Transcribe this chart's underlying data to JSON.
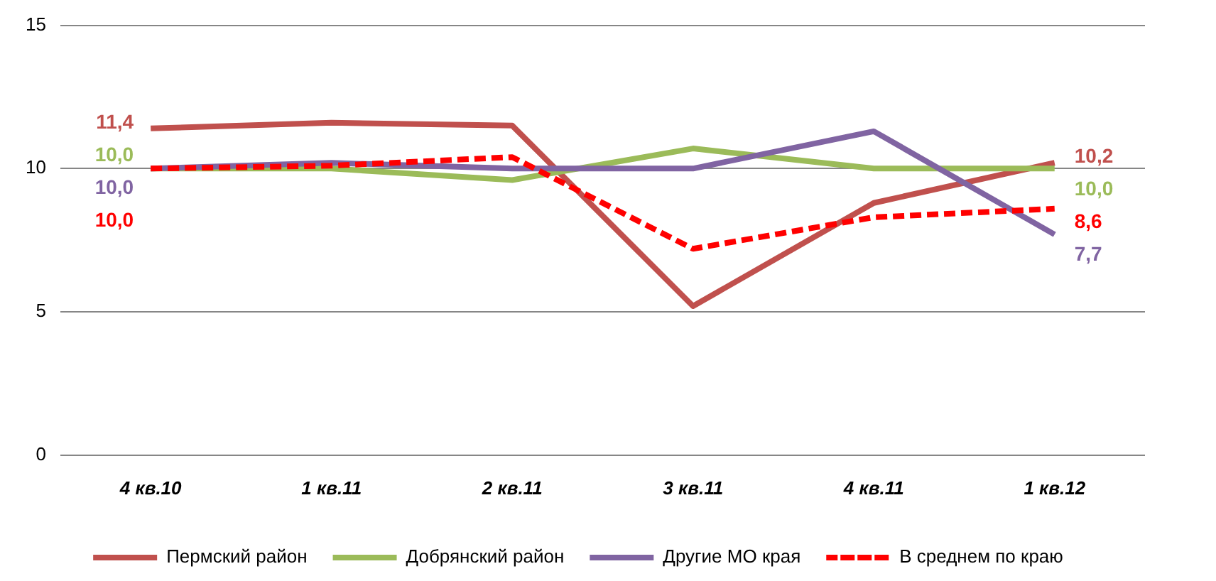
{
  "chart_data": {
    "type": "line",
    "categories": [
      "4 кв.10",
      "1 кв.11",
      "2 кв.11",
      "3 кв.11",
      "4 кв.11",
      "1 кв.12"
    ],
    "series": [
      {
        "name": "Пермский район",
        "color": "#c0504d",
        "values": [
          11.4,
          11.6,
          11.5,
          5.2,
          8.8,
          10.2
        ],
        "value_labels": [
          "11,4",
          null,
          null,
          null,
          null,
          "10,2"
        ]
      },
      {
        "name": "Добрянский район",
        "color": "#9bbb59",
        "values": [
          10.0,
          10.0,
          9.6,
          10.7,
          10.0,
          10.0
        ],
        "value_labels": [
          "10,0",
          null,
          null,
          null,
          null,
          "10,0"
        ]
      },
      {
        "name": "Другие МО края",
        "color": "#8064a2",
        "values": [
          10.0,
          10.2,
          10.0,
          10.0,
          11.3,
          7.7
        ],
        "value_labels": [
          "10,0",
          null,
          null,
          null,
          null,
          "7,7"
        ]
      },
      {
        "name": "В среднем по краю",
        "color": "#ff0000",
        "line_style": "dashed",
        "values": [
          10.0,
          10.1,
          10.4,
          7.2,
          8.3,
          8.6
        ],
        "value_labels": [
          "10,0",
          null,
          null,
          null,
          null,
          "8,6"
        ]
      }
    ],
    "ylim": [
      0,
      15
    ],
    "yticks": [
      0,
      5,
      10,
      15
    ],
    "grid": "y",
    "legend": "bottom",
    "marker": "none"
  }
}
